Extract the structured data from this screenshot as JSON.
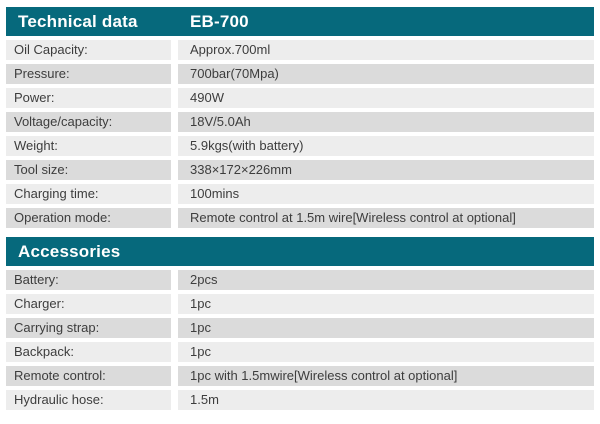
{
  "colors": {
    "header_bg": "#06697c",
    "header_text": "#ffffff",
    "row_light": "#ededed",
    "row_dark": "#dbdbdb",
    "row_text": "#3d3d3d",
    "page_bg": "#ffffff"
  },
  "sections": [
    {
      "title": "Technical data",
      "model": "EB-700",
      "rows": [
        {
          "label": "Oil Capacity:",
          "value": "Approx.700ml"
        },
        {
          "label": "Pressure:",
          "value": "700bar(70Mpa)"
        },
        {
          "label": "Power:",
          "value": "490W"
        },
        {
          "label": "Voltage/capacity:",
          "value": "18V/5.0Ah"
        },
        {
          "label": "Weight:",
          "value": "5.9kgs(with battery)"
        },
        {
          "label": "Tool size:",
          "value": "338×172×226mm"
        },
        {
          "label": "Charging time:",
          "value": "100mins"
        },
        {
          "label": "Operation mode:",
          "value": "Remote control at 1.5m wire[Wireless control at optional]"
        }
      ]
    },
    {
      "title": "Accessories",
      "model": "",
      "rows": [
        {
          "label": "Battery:",
          "value": "2pcs"
        },
        {
          "label": "Charger:",
          "value": "1pc"
        },
        {
          "label": "Carrying strap:",
          "value": "1pc"
        },
        {
          "label": "Backpack:",
          "value": "1pc"
        },
        {
          "label": "Remote control:",
          "value": "1pc with 1.5mwire[Wireless control at optional]"
        },
        {
          "label": "Hydraulic hose:",
          "value": "1.5m"
        }
      ]
    }
  ]
}
